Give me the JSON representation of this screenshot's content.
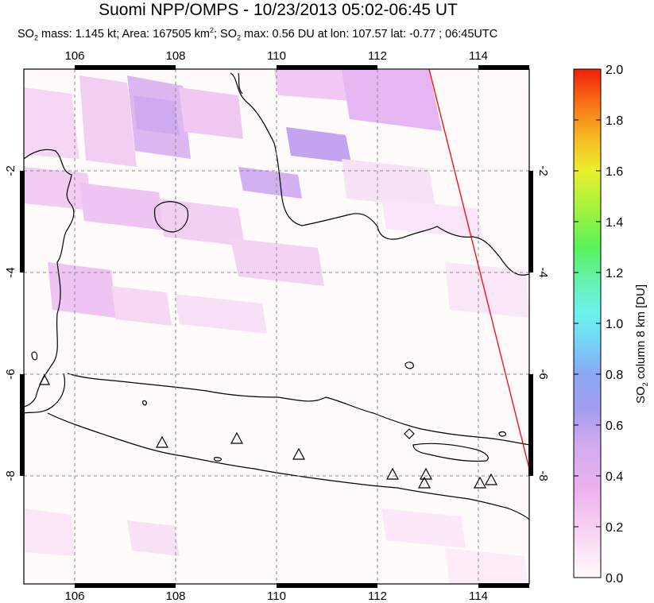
{
  "title": "Suomi NPP/OMPS - 10/23/2013 05:02-06:45 UT",
  "subtitle": {
    "p1": "SO",
    "p1_sub": "2",
    "p2": " mass: 1.145 kt; Area: 167505 km",
    "p2_sup": "2",
    "p3": "; SO",
    "p3_sub": "2",
    "p4": " max: 0.56 DU at lon: 107.57 lat: -0.77 ; 06:45UTC"
  },
  "map": {
    "lon_ticks": [
      "106",
      "108",
      "110",
      "112",
      "114"
    ],
    "lat_ticks_left": [
      "-2",
      "-4",
      "-6",
      "-8"
    ],
    "lat_ticks_right": [
      "-2",
      "-4",
      "-6",
      "-8"
    ],
    "volcano_marker": "triangle-outline",
    "swath_edge_color": "#ff0000",
    "coastline_color": "#000000",
    "grid": "dashed"
  },
  "colorbar": {
    "ticks": [
      "2.0",
      "1.8",
      "1.6",
      "1.4",
      "1.2",
      "1.0",
      "0.8",
      "0.6",
      "0.4",
      "0.2",
      "0.0"
    ],
    "label_prefix": "SO",
    "label_sub": "2",
    "label_rest": " column 8 km [DU]",
    "colors": [
      "#fffcfc",
      "#f8c8f4",
      "#e6a8f0",
      "#b6a6f0",
      "#8c86f2",
      "#6fb6f6",
      "#6ef0f0",
      "#5ef2a0",
      "#52f252",
      "#b8f23a",
      "#f6e82a",
      "#f8a018",
      "#f85010",
      "#f21a0a"
    ]
  }
}
